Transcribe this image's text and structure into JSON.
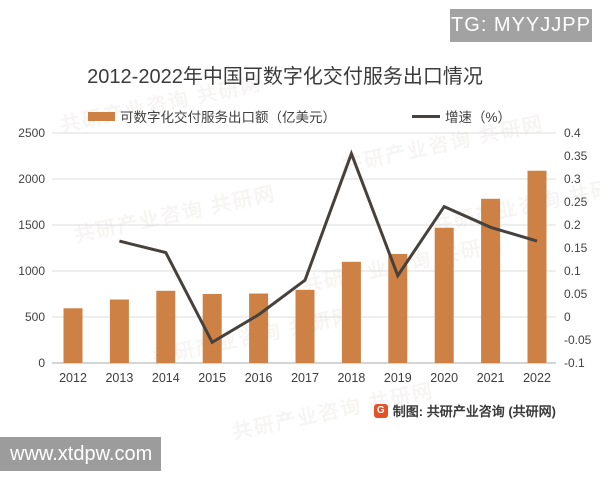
{
  "overlays": {
    "tg_badge": "TG: MYYJJPP",
    "site_watermark": "www.xtdpw.com",
    "bg_watermark": "共研产业咨询 共研网"
  },
  "chart": {
    "title": "2012-2022年中国可数字化交付服务出口情况",
    "legend": {
      "bar_label": "可数字化交付服务出口额（亿美元）",
      "line_label": "增速（%）"
    },
    "footer": {
      "logo_letter": "G",
      "credit": "制图: 共研产业咨询 (共研网)"
    }
  },
  "chart_data": {
    "type": "bar",
    "subtype": "bar+line combo, dual axis",
    "title": "2012-2022年中国可数字化交付服务出口情况",
    "categories": [
      "2012",
      "2013",
      "2014",
      "2015",
      "2016",
      "2017",
      "2018",
      "2019",
      "2020",
      "2021",
      "2022"
    ],
    "series": [
      {
        "name": "可数字化交付服务出口额（亿美元）",
        "type": "bar",
        "axis": "left",
        "color": "#cd8145",
        "values": [
          595,
          690,
          785,
          750,
          755,
          795,
          1100,
          1185,
          1470,
          1785,
          2090
        ]
      },
      {
        "name": "增速（%）",
        "type": "line",
        "axis": "right",
        "color": "#46413c",
        "values": [
          null,
          0.165,
          0.14,
          -0.055,
          0.005,
          0.08,
          0.355,
          0.09,
          0.24,
          0.195,
          0.165
        ]
      }
    ],
    "left_axis": {
      "label": "",
      "min": 0,
      "max": 2500,
      "ticks": [
        "2500",
        "2000",
        "1500",
        "1000",
        "500",
        "0"
      ]
    },
    "right_axis": {
      "label": "",
      "min": -0.1,
      "max": 0.4,
      "ticks": [
        "0.4",
        "0.35",
        "0.3",
        "0.25",
        "0.2",
        "0.15",
        "0.1",
        "0.05",
        "0",
        "-0.05",
        "-0.1"
      ]
    },
    "grid": true,
    "legend_position": "top"
  }
}
